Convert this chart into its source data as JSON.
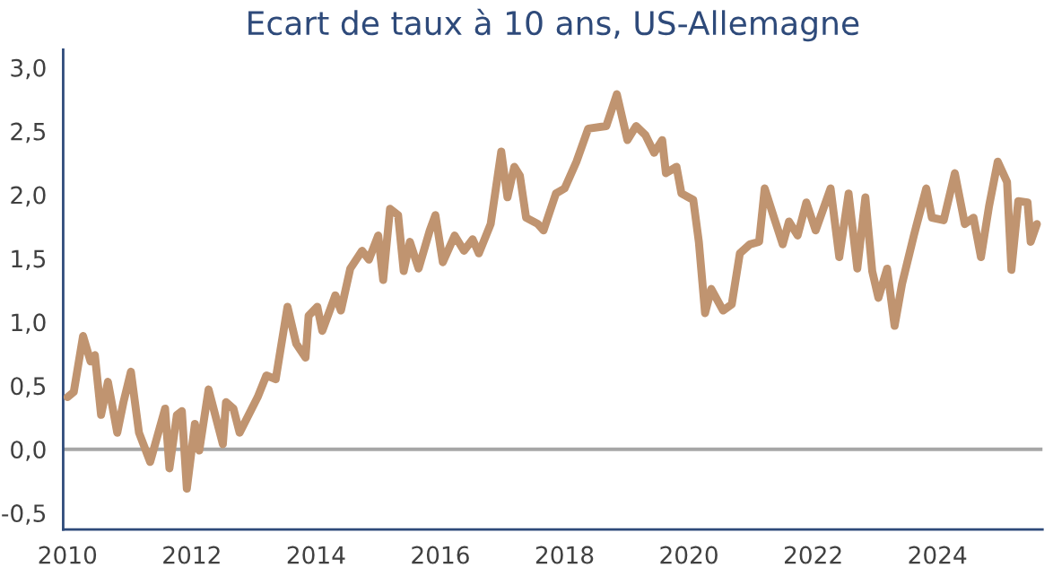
{
  "chart_data": {
    "type": "line",
    "title": "Ecart de taux à 10 ans, US-Allemagne",
    "xlim": [
      2009.93,
      2025.69
    ],
    "xticks": [
      2010,
      2012,
      2014,
      2016,
      2018,
      2020,
      2022,
      2024
    ],
    "ylim": [
      -0.63,
      3.14
    ],
    "yticks": [
      {
        "value": -0.5,
        "label": "-0,5"
      },
      {
        "value": 0,
        "label": "0,0"
      },
      {
        "value": 0.5,
        "label": "0,5"
      },
      {
        "value": 1,
        "label": "1,0"
      },
      {
        "value": 1.5,
        "label": "1,5"
      },
      {
        "value": 2,
        "label": "2,0"
      },
      {
        "value": 2.5,
        "label": "2,5"
      },
      {
        "value": 3,
        "label": "3,0"
      }
    ],
    "grid": false,
    "legend": false,
    "marker": "none",
    "line_style": "solid",
    "ref_lines": [
      {
        "axis": "y",
        "value": 0,
        "color": "#a6a6a6"
      }
    ],
    "series": [
      {
        "color": "#c09470",
        "x": [
          2010.0,
          2010.1,
          2010.25,
          2010.37,
          2010.44,
          2010.54,
          2010.65,
          2010.8,
          2010.9,
          2011.02,
          2011.15,
          2011.33,
          2011.57,
          2011.64,
          2011.76,
          2011.84,
          2011.92,
          2012.05,
          2012.12,
          2012.27,
          2012.5,
          2012.55,
          2012.67,
          2012.77,
          2013.06,
          2013.2,
          2013.35,
          2013.54,
          2013.68,
          2013.83,
          2013.88,
          2014.02,
          2014.1,
          2014.31,
          2014.4,
          2014.55,
          2014.74,
          2014.85,
          2015.0,
          2015.08,
          2015.19,
          2015.32,
          2015.41,
          2015.51,
          2015.65,
          2015.83,
          2015.92,
          2016.04,
          2016.23,
          2016.38,
          2016.52,
          2016.62,
          2016.81,
          2016.98,
          2017.08,
          2017.19,
          2017.28,
          2017.38,
          2017.57,
          2017.66,
          2017.86,
          2018.0,
          2018.19,
          2018.38,
          2018.67,
          2018.84,
          2019.01,
          2019.15,
          2019.3,
          2019.44,
          2019.57,
          2019.63,
          2019.8,
          2019.88,
          2020.07,
          2020.16,
          2020.26,
          2020.36,
          2020.55,
          2020.69,
          2020.82,
          2020.98,
          2021.13,
          2021.22,
          2021.37,
          2021.51,
          2021.61,
          2021.75,
          2021.89,
          2022.04,
          2022.28,
          2022.42,
          2022.57,
          2022.71,
          2022.84,
          2022.95,
          2023.05,
          2023.19,
          2023.31,
          2023.43,
          2023.62,
          2023.82,
          2023.91,
          2024.1,
          2024.28,
          2024.44,
          2024.58,
          2024.7,
          2024.83,
          2024.97,
          2025.12,
          2025.19,
          2025.3,
          2025.45,
          2025.5,
          2025.6
        ],
        "values": [
          0.41,
          0.45,
          0.89,
          0.69,
          0.74,
          0.27,
          0.53,
          0.13,
          0.37,
          0.61,
          0.13,
          -0.1,
          0.32,
          -0.15,
          0.27,
          0.3,
          -0.31,
          0.2,
          -0.01,
          0.47,
          0.04,
          0.37,
          0.32,
          0.13,
          0.41,
          0.58,
          0.55,
          1.12,
          0.83,
          0.72,
          1.05,
          1.12,
          0.93,
          1.21,
          1.09,
          1.42,
          1.56,
          1.49,
          1.68,
          1.33,
          1.89,
          1.84,
          1.4,
          1.63,
          1.42,
          1.72,
          1.84,
          1.47,
          1.68,
          1.56,
          1.65,
          1.54,
          1.77,
          2.34,
          1.98,
          2.22,
          2.15,
          1.82,
          1.77,
          1.72,
          2.01,
          2.05,
          2.26,
          2.52,
          2.54,
          2.79,
          2.43,
          2.54,
          2.47,
          2.33,
          2.43,
          2.17,
          2.22,
          2.01,
          1.96,
          1.63,
          1.07,
          1.26,
          1.09,
          1.14,
          1.54,
          1.61,
          1.63,
          2.05,
          1.82,
          1.61,
          1.79,
          1.68,
          1.94,
          1.72,
          2.05,
          1.51,
          2.01,
          1.42,
          1.98,
          1.4,
          1.19,
          1.42,
          0.97,
          1.3,
          1.68,
          2.05,
          1.82,
          1.8,
          2.17,
          1.77,
          1.82,
          1.51,
          1.91,
          2.26,
          2.1,
          1.41,
          1.95,
          1.94,
          1.63,
          1.77
        ]
      }
    ]
  }
}
